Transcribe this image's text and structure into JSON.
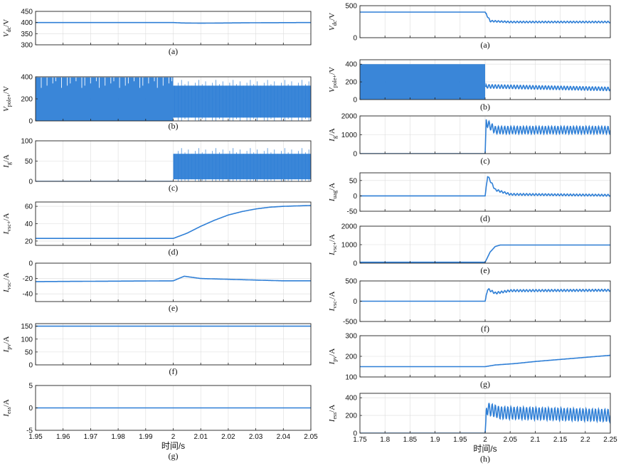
{
  "chart_data": [
    {
      "id": "L_a",
      "type": "line",
      "caption": "(a)",
      "ylabel": "V_dc/V",
      "ylabel_main": "V",
      "ylabel_sub": "dc",
      "ylabel_unit": "/V",
      "ylim": [
        300,
        450
      ],
      "yticks": [
        300,
        350,
        400,
        450
      ],
      "xlim": [
        1.95,
        2.05
      ],
      "series": [
        {
          "values": [
            [
              1.95,
              400
            ],
            [
              2.0,
              400
            ],
            [
              2.003,
              398
            ],
            [
              2.01,
              397
            ],
            [
              2.02,
              398
            ],
            [
              2.03,
              399
            ],
            [
              2.05,
              400
            ]
          ]
        }
      ]
    },
    {
      "id": "L_b",
      "type": "line",
      "caption": "(b)",
      "ylabel": "V_pole+/V",
      "ylabel_main": "V",
      "ylabel_sub": "pole+",
      "ylabel_unit": "/V",
      "ylim": [
        0,
        400
      ],
      "yticks": [
        0,
        200,
        400
      ],
      "xlim": [
        1.95,
        2.05
      ],
      "series": [
        {
          "band_before": [
            0,
            395
          ],
          "band_after": [
            30,
            320
          ],
          "switch_x": 2.0
        }
      ]
    },
    {
      "id": "L_c",
      "type": "line",
      "caption": "(c)",
      "ylabel": "I_g/A",
      "ylabel_main": "I",
      "ylabel_sub": "g",
      "ylabel_unit": "/A",
      "ylim": [
        0,
        100
      ],
      "yticks": [
        0,
        50,
        100
      ],
      "xlim": [
        1.95,
        2.05
      ],
      "series": [
        {
          "band_before": [
            0,
            0
          ],
          "band_after": [
            5,
            68
          ],
          "switch_x": 2.0
        }
      ]
    },
    {
      "id": "L_d",
      "type": "line",
      "caption": "(d)",
      "ylabel": "I_vsc+/A",
      "ylabel_main": "I",
      "ylabel_sub": "vsc+",
      "ylabel_unit": "/A",
      "ylim": [
        15,
        65
      ],
      "yticks": [
        20,
        40,
        60
      ],
      "xlim": [
        1.95,
        2.05
      ],
      "series": [
        {
          "values": [
            [
              1.95,
              23
            ],
            [
              2.0,
              23
            ],
            [
              2.005,
              29
            ],
            [
              2.01,
              37
            ],
            [
              2.015,
              44
            ],
            [
              2.02,
              50
            ],
            [
              2.025,
              54
            ],
            [
              2.03,
              57
            ],
            [
              2.035,
              59
            ],
            [
              2.04,
              60
            ],
            [
              2.05,
              61
            ]
          ]
        }
      ]
    },
    {
      "id": "L_e",
      "type": "line",
      "caption": "(e)",
      "ylabel": "I_vsc-/A",
      "ylabel_main": "I",
      "ylabel_sub": "vsc-",
      "ylabel_unit": "/A",
      "ylim": [
        -50,
        0
      ],
      "yticks": [
        -40,
        -20,
        0
      ],
      "xlim": [
        1.95,
        2.05
      ],
      "series": [
        {
          "values": [
            [
              1.95,
              -24
            ],
            [
              2.0,
              -23
            ],
            [
              2.004,
              -17
            ],
            [
              2.01,
              -20
            ],
            [
              2.02,
              -21
            ],
            [
              2.03,
              -22
            ],
            [
              2.04,
              -23
            ],
            [
              2.05,
              -23
            ]
          ]
        }
      ]
    },
    {
      "id": "L_f",
      "type": "line",
      "caption": "(f)",
      "ylabel": "I_pv/A",
      "ylabel_main": "I",
      "ylabel_sub": "pv",
      "ylabel_unit": "/A",
      "ylim": [
        0,
        160
      ],
      "yticks": [
        0,
        50,
        100,
        150
      ],
      "xlim": [
        1.95,
        2.05
      ],
      "series": [
        {
          "values": [
            [
              1.95,
              150
            ],
            [
              2.05,
              150
            ]
          ]
        }
      ]
    },
    {
      "id": "L_g",
      "type": "line",
      "caption": "(g)",
      "ylabel": "I_ess/A",
      "ylabel_main": "I",
      "ylabel_sub": "ess",
      "ylabel_unit": "/A",
      "ylim": [
        -5,
        5
      ],
      "yticks": [
        -5,
        0,
        5
      ],
      "xlim": [
        1.95,
        2.05
      ],
      "xticks": [
        1.95,
        1.96,
        1.97,
        1.98,
        1.99,
        2,
        2.01,
        2.02,
        2.03,
        2.04,
        2.05
      ],
      "xlabel": "时间/s",
      "series": [
        {
          "values": [
            [
              1.95,
              0
            ],
            [
              2.05,
              0
            ]
          ]
        }
      ]
    },
    {
      "id": "R_a",
      "type": "line",
      "caption": "(a)",
      "ylabel": "V_dc/V",
      "ylabel_main": "V",
      "ylabel_sub": "dc",
      "ylabel_unit": "/V",
      "ylim": [
        0,
        500
      ],
      "yticks": [
        0,
        500
      ],
      "xlim": [
        1.75,
        2.25
      ],
      "series": [
        {
          "values": [
            [
              1.75,
              400
            ],
            [
              2.0,
              400
            ],
            [
              2.01,
              260
            ],
            [
              2.05,
              245
            ],
            [
              2.25,
              245
            ]
          ],
          "ripple_after": 12
        }
      ]
    },
    {
      "id": "R_b",
      "type": "line",
      "caption": "(b)",
      "ylabel": "V_pole+/V",
      "ylabel_main": "V",
      "ylabel_sub": "pole+",
      "ylabel_unit": "/V",
      "ylim": [
        0,
        450
      ],
      "yticks": [
        0,
        200,
        400
      ],
      "xlim": [
        1.75,
        2.25
      ],
      "series": [
        {
          "band_before": [
            0,
            400
          ],
          "switch_x": 2.0,
          "values": [
            [
              2.0,
              150
            ],
            [
              2.25,
              120
            ]
          ],
          "ripple_after": 20
        }
      ]
    },
    {
      "id": "R_c",
      "type": "line",
      "caption": "(c)",
      "ylabel": "I_g/A",
      "ylabel_main": "I",
      "ylabel_sub": "g",
      "ylabel_unit": "/A",
      "ylim": [
        0,
        2000
      ],
      "yticks": [
        0,
        1000,
        2000
      ],
      "xlim": [
        1.75,
        2.25
      ],
      "series": [
        {
          "values": [
            [
              1.75,
              0
            ],
            [
              2.0,
              0
            ],
            [
              2.002,
              1650
            ],
            [
              2.02,
              1250
            ],
            [
              2.25,
              1250
            ]
          ],
          "ripple_after": 200
        }
      ]
    },
    {
      "id": "R_d",
      "type": "line",
      "caption": "(d)",
      "ylabel": "I_uag/A",
      "ylabel_main": "I",
      "ylabel_sub": "uag",
      "ylabel_unit": "/A",
      "ylim": [
        -50,
        75
      ],
      "yticks": [
        -50,
        0,
        50
      ],
      "xlim": [
        1.75,
        2.25
      ],
      "series": [
        {
          "values": [
            [
              1.75,
              0
            ],
            [
              2.0,
              0
            ],
            [
              2.005,
              65
            ],
            [
              2.02,
              20
            ],
            [
              2.05,
              5
            ],
            [
              2.25,
              2
            ]
          ],
          "ripple_after": 3
        }
      ]
    },
    {
      "id": "R_e",
      "type": "line",
      "caption": "(e)",
      "ylabel": "I_vsc+/A",
      "ylabel_main": "I",
      "ylabel_sub": "vsc+",
      "ylabel_unit": "/A",
      "ylim": [
        0,
        2000
      ],
      "yticks": [
        0,
        1000,
        2000
      ],
      "xlim": [
        1.75,
        2.25
      ],
      "series": [
        {
          "values": [
            [
              1.75,
              50
            ],
            [
              2.0,
              50
            ],
            [
              2.01,
              600
            ],
            [
              2.02,
              900
            ],
            [
              2.03,
              980
            ],
            [
              2.25,
              980
            ]
          ]
        }
      ]
    },
    {
      "id": "R_f",
      "type": "line",
      "caption": "(f)",
      "ylabel": "I_vsc-/A",
      "ylabel_main": "I",
      "ylabel_sub": "vsc-",
      "ylabel_unit": "/A",
      "ylim": [
        -500,
        500
      ],
      "yticks": [
        -500,
        0,
        500
      ],
      "xlim": [
        1.75,
        2.25
      ],
      "series": [
        {
          "values": [
            [
              1.75,
              0
            ],
            [
              2.0,
              0
            ],
            [
              2.005,
              300
            ],
            [
              2.02,
              200
            ],
            [
              2.05,
              260
            ],
            [
              2.25,
              270
            ]
          ],
          "ripple_after": 25
        }
      ]
    },
    {
      "id": "R_g",
      "type": "line",
      "caption": "(g)",
      "ylabel": "I_pv/A",
      "ylabel_main": "I",
      "ylabel_sub": "pv",
      "ylabel_unit": "/A",
      "ylim": [
        100,
        300
      ],
      "yticks": [
        100,
        200,
        300
      ],
      "xlim": [
        1.75,
        2.25
      ],
      "series": [
        {
          "values": [
            [
              1.75,
              150
            ],
            [
              2.0,
              150
            ],
            [
              2.02,
              158
            ],
            [
              2.06,
              165
            ],
            [
              2.1,
              175
            ],
            [
              2.15,
              185
            ],
            [
              2.2,
              195
            ],
            [
              2.25,
              205
            ]
          ]
        }
      ]
    },
    {
      "id": "R_h",
      "type": "line",
      "caption": "(h)",
      "ylabel": "I_ess/A",
      "ylabel_main": "I",
      "ylabel_sub": "ess",
      "ylabel_unit": "/A",
      "ylim": [
        0,
        450
      ],
      "yticks": [
        0,
        200,
        400
      ],
      "xlim": [
        1.75,
        2.25
      ],
      "xticks": [
        1.75,
        1.8,
        1.85,
        1.9,
        1.95,
        2,
        2.05,
        2.1,
        2.15,
        2.2,
        2.25
      ],
      "xlabel": "时间/s",
      "series": [
        {
          "values": [
            [
              1.75,
              0
            ],
            [
              2.0,
              0
            ],
            [
              2.003,
              280
            ],
            [
              2.03,
              230
            ],
            [
              2.25,
              200
            ]
          ],
          "ripple_after": 70
        }
      ]
    }
  ],
  "colors": {
    "line": "#2f7fd6",
    "axis": "#222222",
    "grid": "#dcdcdc"
  }
}
